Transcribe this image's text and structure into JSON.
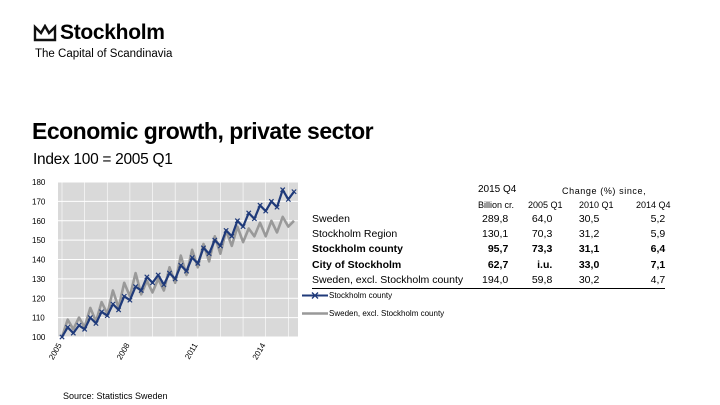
{
  "logo": {
    "name": "Stockholm",
    "tagline": "The Capital of Scandinavia"
  },
  "slide": {
    "title": "Economic growth, private sector",
    "subtitle": "Index 100 = 2005 Q1"
  },
  "source": "Source: Statistics Sweden",
  "colors": {
    "stockholm_county": "#1f3a7a",
    "sweden_excl": "#999999",
    "plot_bg": "#d9d9d9",
    "grid": "#ffffff"
  },
  "chart_data": {
    "type": "line",
    "title": "",
    "xlabel": "",
    "ylabel": "",
    "ylim": [
      100,
      180
    ],
    "y_ticks": [
      "180",
      "170",
      "160",
      "150",
      "140",
      "130",
      "120",
      "110",
      "100"
    ],
    "x_tick_labels": [
      "2005",
      "2008",
      "2011",
      "2014"
    ],
    "x_start_quarter": "2005 Q1",
    "grid": true,
    "legend": "bottom-right",
    "series": [
      {
        "name": "Stockholm county",
        "color": "#1f3a7a",
        "values": [
          100,
          105,
          102,
          106,
          104,
          110,
          107,
          113,
          111,
          117,
          114,
          121,
          119,
          126,
          124,
          131,
          128,
          132,
          127,
          133,
          130,
          137,
          134,
          141,
          138,
          146,
          143,
          150,
          147,
          155,
          152,
          160,
          157,
          164,
          161,
          168,
          165,
          170,
          167,
          176,
          171,
          175
        ]
      },
      {
        "name": "Sweden, excl. Stockholm county",
        "color": "#999999",
        "values": [
          100,
          109,
          104,
          110,
          105,
          115,
          108,
          118,
          112,
          124,
          115,
          128,
          121,
          133,
          122,
          129,
          123,
          130,
          124,
          136,
          128,
          142,
          132,
          145,
          136,
          148,
          139,
          152,
          143,
          155,
          147,
          157,
          149,
          156,
          152,
          159,
          152,
          160,
          154,
          162,
          157,
          160
        ]
      }
    ]
  },
  "table": {
    "header": {
      "group": "Change (%) since,",
      "billion": "Billion cr.",
      "q1": "2005 Q1",
      "q2": "2010 Q1",
      "q3": "2014 Q4",
      "period": "2015 Q4"
    },
    "rows": [
      {
        "label": "Sweden",
        "billion": "289,8",
        "c1": "64,0",
        "c2": "30,5",
        "c3": "5,2",
        "bold": false
      },
      {
        "label": "Stockholm Region",
        "billion": "130,1",
        "c1": "70,3",
        "c2": "31,2",
        "c3": "5,9",
        "bold": false
      },
      {
        "label": "Stockholm county",
        "billion": "95,7",
        "c1": "73,3",
        "c2": "31,1",
        "c3": "6,4",
        "bold": true
      },
      {
        "label": "City of Stockholm",
        "billion": "62,7",
        "c1": "i.u.",
        "c2": "33,0",
        "c3": "7,1",
        "bold": true
      },
      {
        "label": "Sweden, excl. Stockholm county",
        "billion": "194,0",
        "c1": "59,8",
        "c2": "30,2",
        "c3": "4,7",
        "bold": false
      }
    ]
  },
  "legend": {
    "item1": "Stockholm county",
    "item2": "Sweden, excl. Stockholm county"
  }
}
